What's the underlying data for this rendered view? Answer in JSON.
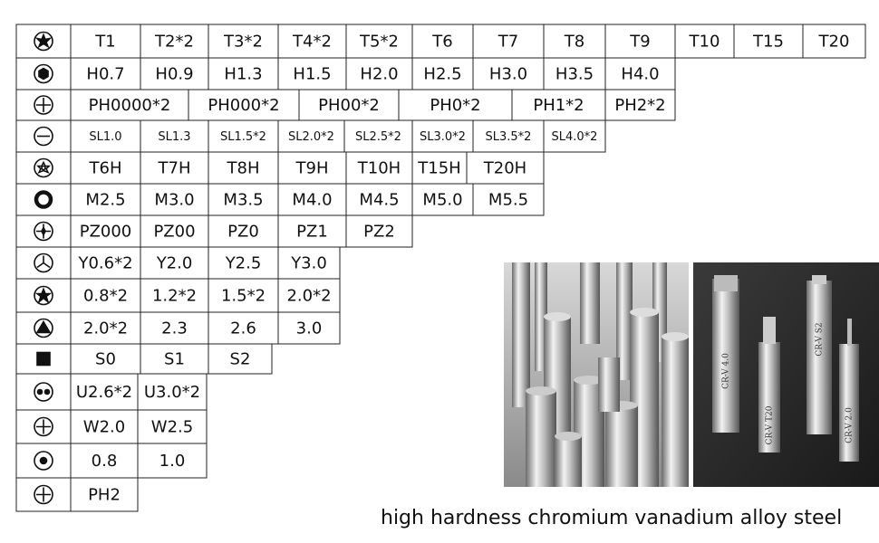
{
  "table": {
    "rows": [
      [
        "T1",
        "T2*2",
        "T3*2",
        "T4*2",
        "T5*2",
        "T6",
        "T7",
        "T8",
        "T9",
        "T10",
        "T15",
        "T20"
      ],
      [
        "H0.7",
        "H0.9",
        "H1.3",
        "H1.5",
        "H2.0",
        "H2.5",
        "H3.0",
        "H3.5",
        "H4.0"
      ],
      [
        "PH0000*2",
        "PH000*2",
        "PH00*2",
        "PH0*2",
        "PH1*2",
        "PH2*2"
      ],
      [
        "SL1.0",
        "SL1.3",
        "SL1.5*2",
        "SL2.0*2",
        "SL2.5*2",
        "SL3.0*2",
        "SL3.5*2",
        "SL4.0*2"
      ],
      [
        "T6H",
        "T7H",
        "T8H",
        "T9H",
        "T10H",
        "T15H",
        "T20H"
      ],
      [
        "M2.5",
        "M3.0",
        "M3.5",
        "M4.0",
        "M4.5",
        "M5.0",
        "M5.5"
      ],
      [
        "PZ000",
        "PZ00",
        "PZ0",
        "PZ1",
        "PZ2"
      ],
      [
        "Y0.6*2",
        "Y2.0",
        "Y2.5",
        "Y3.0"
      ],
      [
        "0.8*2",
        "1.2*2",
        "1.5*2",
        "2.0*2"
      ],
      [
        "2.0*2",
        "2.3",
        "2.6",
        "3.0"
      ],
      [
        "S0",
        "S1",
        "S2"
      ],
      [
        "U2.6*2",
        "U3.0*2"
      ],
      [
        "W2.0",
        "W2.5"
      ],
      [
        "0.8",
        "1.0"
      ],
      [
        "PH2"
      ]
    ]
  },
  "photo_labels": [
    "CR-V 4.0",
    "CR-V T20",
    "CR-V S2",
    "CR-V 2.0"
  ],
  "caption": "high hardness chromium vanadium alloy steel"
}
